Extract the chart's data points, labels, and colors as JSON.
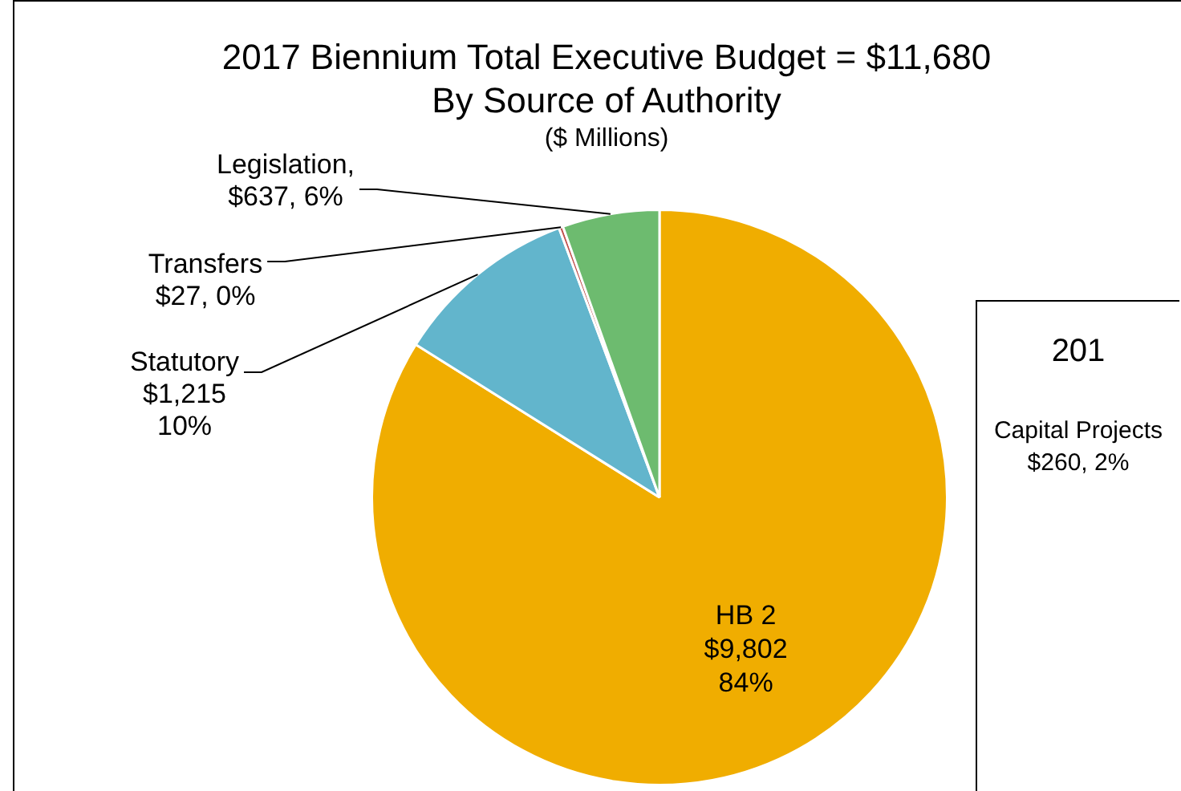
{
  "chart_data": [
    {
      "type": "pie",
      "title": "2017 Biennium Total Executive Budget = $11,680",
      "subtitle": "By Source of Authority",
      "annotations": [
        "($ Millions)"
      ],
      "categories": [
        "HB 2",
        "Statutory",
        "Transfers",
        "Legislation"
      ],
      "values": [
        9802,
        1215,
        27,
        637
      ],
      "colors": [
        "#f0ad00",
        "#62b5cc",
        "#c0504d",
        "#6dbb6f"
      ],
      "value_labels": [
        "$9,802\n84%",
        "$1,215\n10%",
        "$27, 0%",
        ",\n$637, 6%"
      ]
    },
    {
      "type": "other",
      "title": "201",
      "annotations": [
        "Capital Projects",
        "$260, 2%"
      ]
    }
  ]
}
